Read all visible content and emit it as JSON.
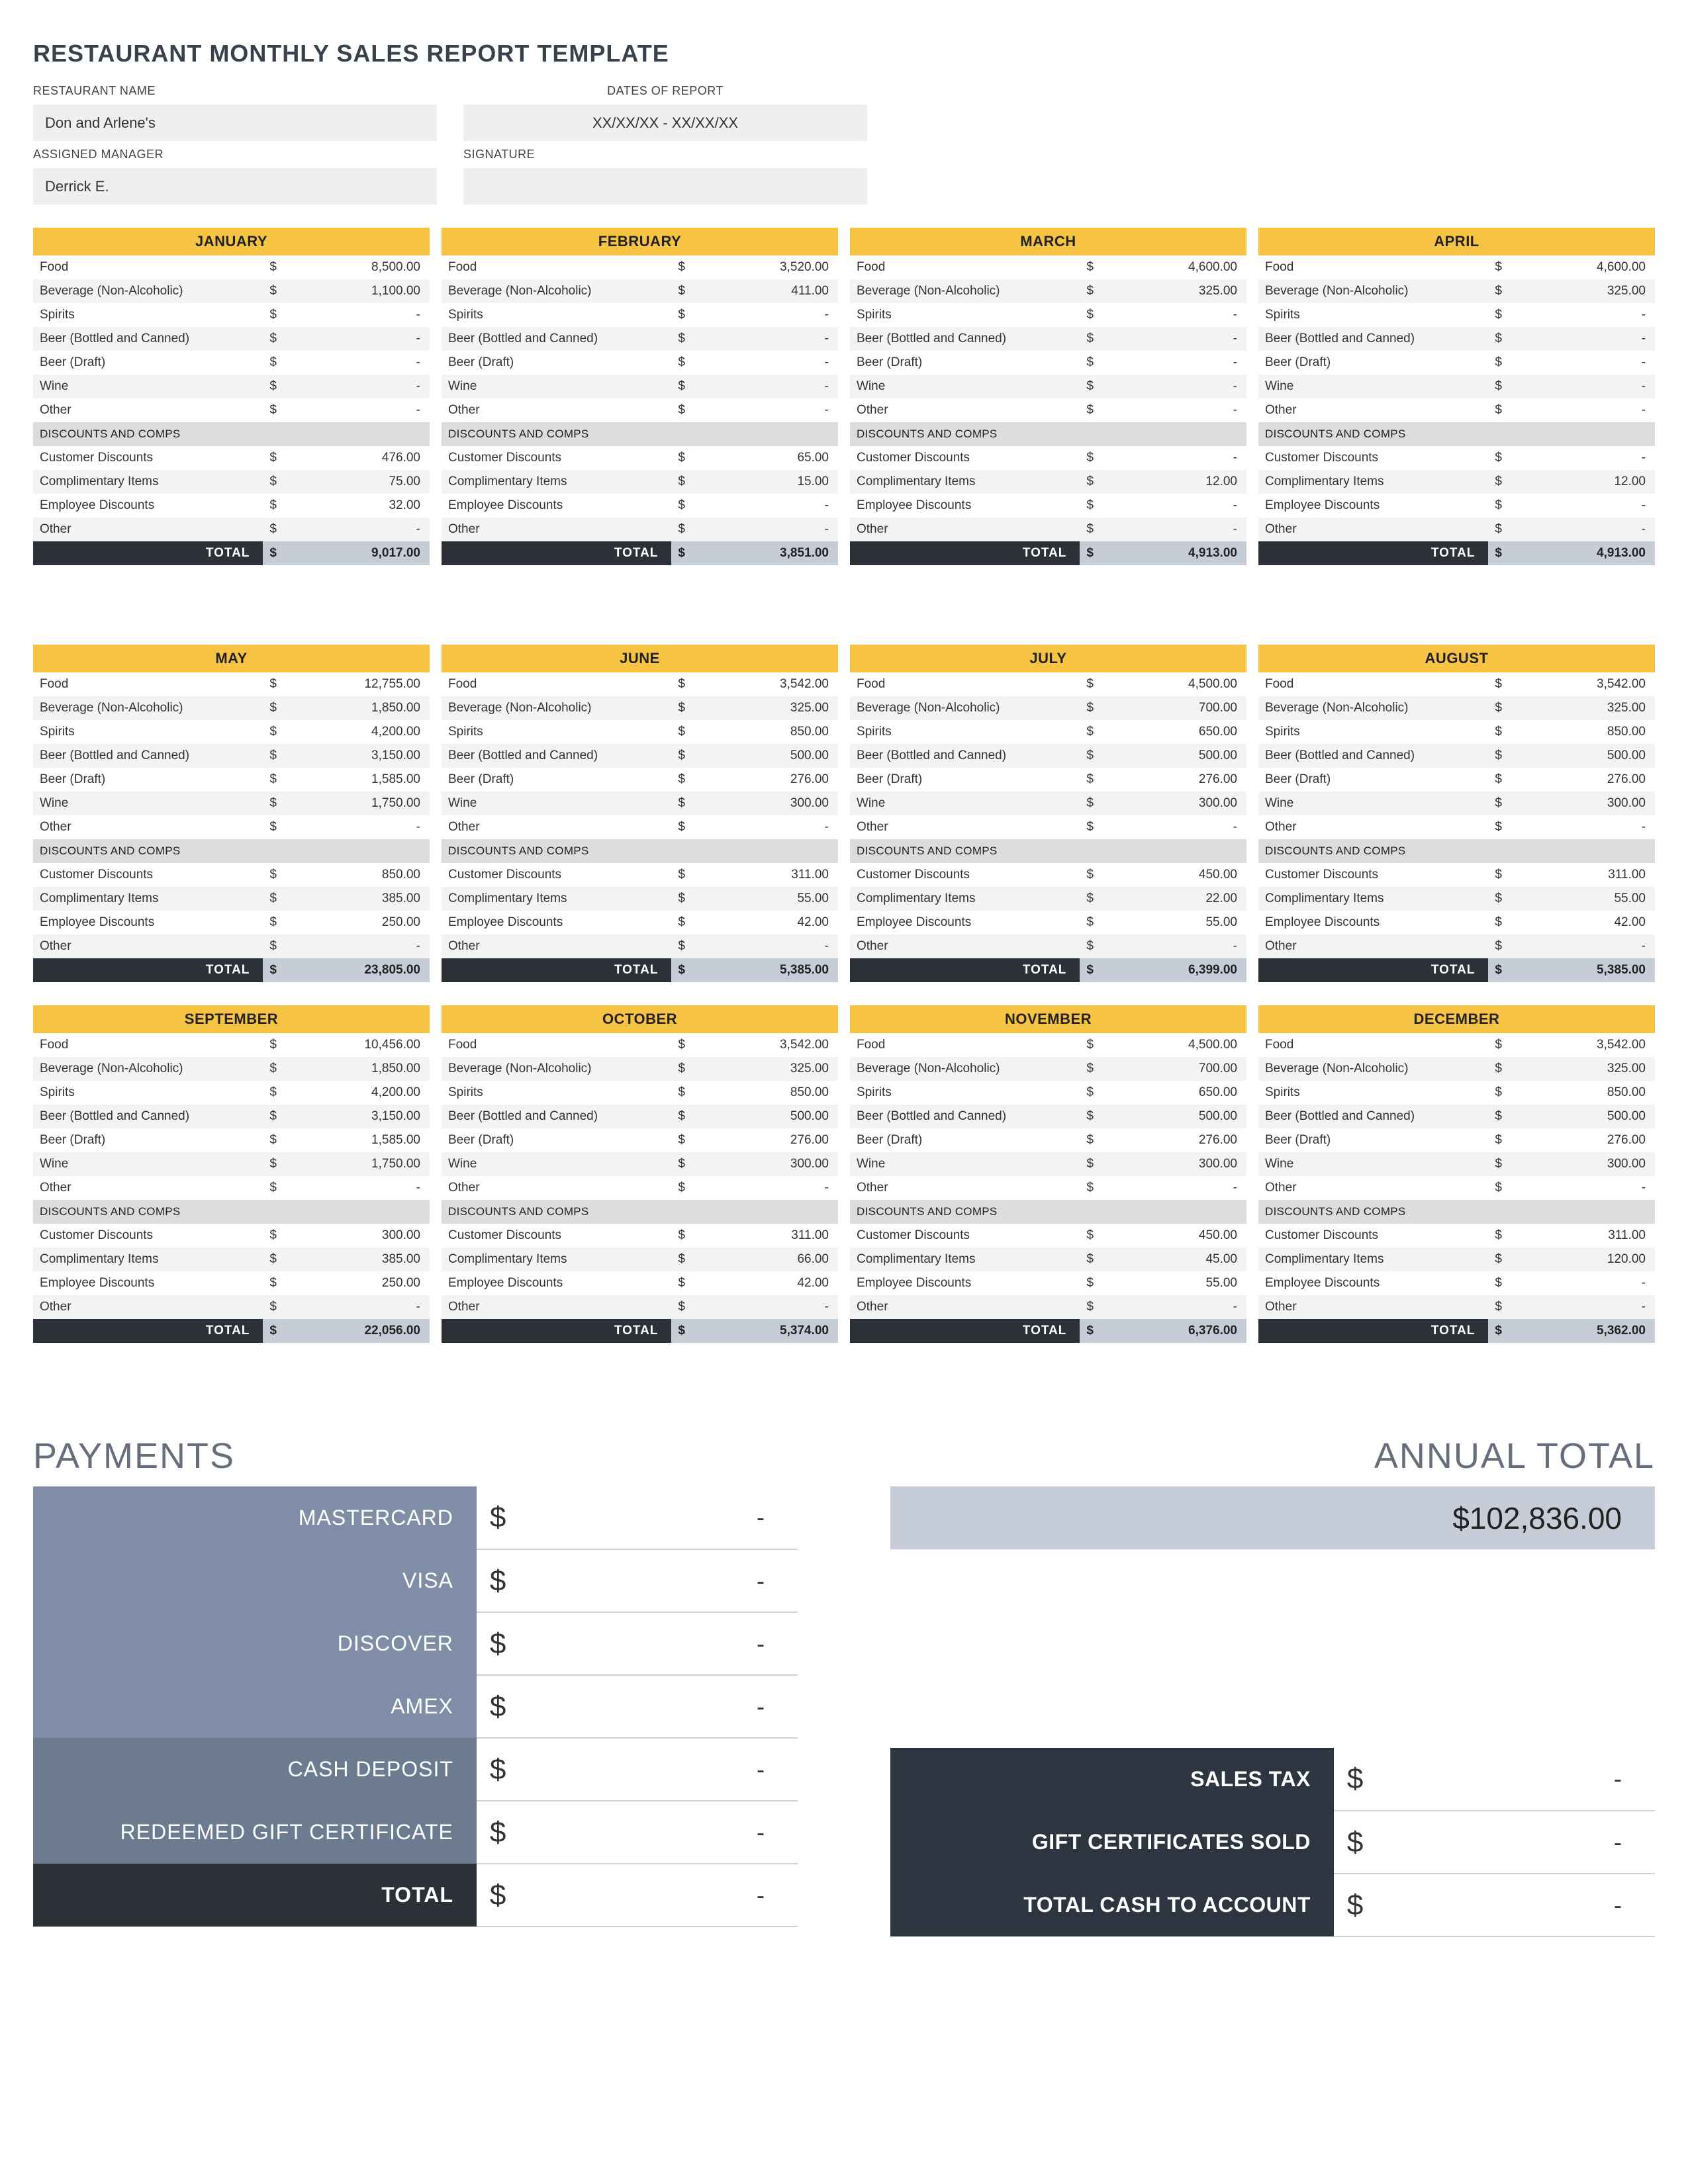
{
  "title": "RESTAURANT MONTHLY SALES REPORT TEMPLATE",
  "header": {
    "restaurant_name_label": "RESTAURANT NAME",
    "restaurant_name": "Don and Arlene's",
    "dates_label": "DATES OF REPORT",
    "dates": "XX/XX/XX - XX/XX/XX",
    "manager_label": "ASSIGNED MANAGER",
    "manager": "Derrick E.",
    "signature_label": "SIGNATURE",
    "signature": ""
  },
  "currency": "$",
  "dash": "-",
  "row_labels": {
    "food": "Food",
    "bev": "Beverage (Non-Alcoholic)",
    "spirits": "Spirits",
    "beer_bc": "Beer (Bottled and Canned)",
    "beer_d": "Beer (Draft)",
    "wine": "Wine",
    "other": "Other",
    "disc_hdr": "DISCOUNTS AND COMPS",
    "cust_disc": "Customer Discounts",
    "comp": "Complimentary Items",
    "emp_disc": "Employee Discounts",
    "other2": "Other",
    "total": "TOTAL"
  },
  "months": [
    {
      "name": "JANUARY",
      "food": "8,500.00",
      "bev": "1,100.00",
      "spirits": "-",
      "beer_bc": "-",
      "beer_d": "-",
      "wine": "-",
      "other": "-",
      "cust_disc": "476.00",
      "comp": "75.00",
      "emp_disc": "32.00",
      "other2": "-",
      "total": "9,017.00"
    },
    {
      "name": "FEBRUARY",
      "food": "3,520.00",
      "bev": "411.00",
      "spirits": "-",
      "beer_bc": "-",
      "beer_d": "-",
      "wine": "-",
      "other": "-",
      "cust_disc": "65.00",
      "comp": "15.00",
      "emp_disc": "-",
      "other2": "-",
      "total": "3,851.00"
    },
    {
      "name": "MARCH",
      "food": "4,600.00",
      "bev": "325.00",
      "spirits": "-",
      "beer_bc": "-",
      "beer_d": "-",
      "wine": "-",
      "other": "-",
      "cust_disc": "-",
      "comp": "12.00",
      "emp_disc": "-",
      "other2": "-",
      "total": "4,913.00"
    },
    {
      "name": "APRIL",
      "food": "4,600.00",
      "bev": "325.00",
      "spirits": "-",
      "beer_bc": "-",
      "beer_d": "-",
      "wine": "-",
      "other": "-",
      "cust_disc": "-",
      "comp": "12.00",
      "emp_disc": "-",
      "other2": "-",
      "total": "4,913.00"
    },
    {
      "name": "MAY",
      "food": "12,755.00",
      "bev": "1,850.00",
      "spirits": "4,200.00",
      "beer_bc": "3,150.00",
      "beer_d": "1,585.00",
      "wine": "1,750.00",
      "other": "-",
      "cust_disc": "850.00",
      "comp": "385.00",
      "emp_disc": "250.00",
      "other2": "-",
      "total": "23,805.00"
    },
    {
      "name": "JUNE",
      "food": "3,542.00",
      "bev": "325.00",
      "spirits": "850.00",
      "beer_bc": "500.00",
      "beer_d": "276.00",
      "wine": "300.00",
      "other": "-",
      "cust_disc": "311.00",
      "comp": "55.00",
      "emp_disc": "42.00",
      "other2": "-",
      "total": "5,385.00"
    },
    {
      "name": "JULY",
      "food": "4,500.00",
      "bev": "700.00",
      "spirits": "650.00",
      "beer_bc": "500.00",
      "beer_d": "276.00",
      "wine": "300.00",
      "other": "-",
      "cust_disc": "450.00",
      "comp": "22.00",
      "emp_disc": "55.00",
      "other2": "-",
      "total": "6,399.00"
    },
    {
      "name": "AUGUST",
      "food": "3,542.00",
      "bev": "325.00",
      "spirits": "850.00",
      "beer_bc": "500.00",
      "beer_d": "276.00",
      "wine": "300.00",
      "other": "-",
      "cust_disc": "311.00",
      "comp": "55.00",
      "emp_disc": "42.00",
      "other2": "-",
      "total": "5,385.00"
    },
    {
      "name": "SEPTEMBER",
      "food": "10,456.00",
      "bev": "1,850.00",
      "spirits": "4,200.00",
      "beer_bc": "3,150.00",
      "beer_d": "1,585.00",
      "wine": "1,750.00",
      "other": "-",
      "cust_disc": "300.00",
      "comp": "385.00",
      "emp_disc": "250.00",
      "other2": "-",
      "total": "22,056.00"
    },
    {
      "name": "OCTOBER",
      "food": "3,542.00",
      "bev": "325.00",
      "spirits": "850.00",
      "beer_bc": "500.00",
      "beer_d": "276.00",
      "wine": "300.00",
      "other": "-",
      "cust_disc": "311.00",
      "comp": "66.00",
      "emp_disc": "42.00",
      "other2": "-",
      "total": "5,374.00"
    },
    {
      "name": "NOVEMBER",
      "food": "4,500.00",
      "bev": "700.00",
      "spirits": "650.00",
      "beer_bc": "500.00",
      "beer_d": "276.00",
      "wine": "300.00",
      "other": "-",
      "cust_disc": "450.00",
      "comp": "45.00",
      "emp_disc": "55.00",
      "other2": "-",
      "total": "6,376.00"
    },
    {
      "name": "DECEMBER",
      "food": "3,542.00",
      "bev": "325.00",
      "spirits": "850.00",
      "beer_bc": "500.00",
      "beer_d": "276.00",
      "wine": "300.00",
      "other": "-",
      "cust_disc": "311.00",
      "comp": "120.00",
      "emp_disc": "-",
      "other2": "-",
      "total": "5,362.00"
    }
  ],
  "payments": {
    "title": "PAYMENTS",
    "rows": [
      {
        "label": "MASTERCARD",
        "value": "-",
        "bg": "#7f8ea6"
      },
      {
        "label": "VISA",
        "value": "-",
        "bg": "#7f8ea6"
      },
      {
        "label": "DISCOVER",
        "value": "-",
        "bg": "#7f8ea6"
      },
      {
        "label": "AMEX",
        "value": "-",
        "bg": "#7f8ea6"
      },
      {
        "label": "CASH DEPOSIT",
        "value": "-",
        "bg": "#6d7b90"
      },
      {
        "label": "REDEEMED GIFT CERTIFICATE",
        "value": "-",
        "bg": "#6d7b90"
      }
    ],
    "total_label": "TOTAL",
    "total_value": "-"
  },
  "annual": {
    "title": "ANNUAL TOTAL",
    "value": "$102,836.00"
  },
  "tax": [
    {
      "label": "SALES TAX",
      "value": "-"
    },
    {
      "label": "GIFT CERTIFICATES SOLD",
      "value": "-"
    },
    {
      "label": "TOTAL CASH TO ACCOUNT",
      "value": "-"
    }
  ],
  "colors": {
    "month_header": "#f6c342",
    "total_row_dark": "#2c3138",
    "total_row_val": "#c7cdd6",
    "annual_box": "#c6cdd9",
    "tax_label": "#2c3540"
  }
}
